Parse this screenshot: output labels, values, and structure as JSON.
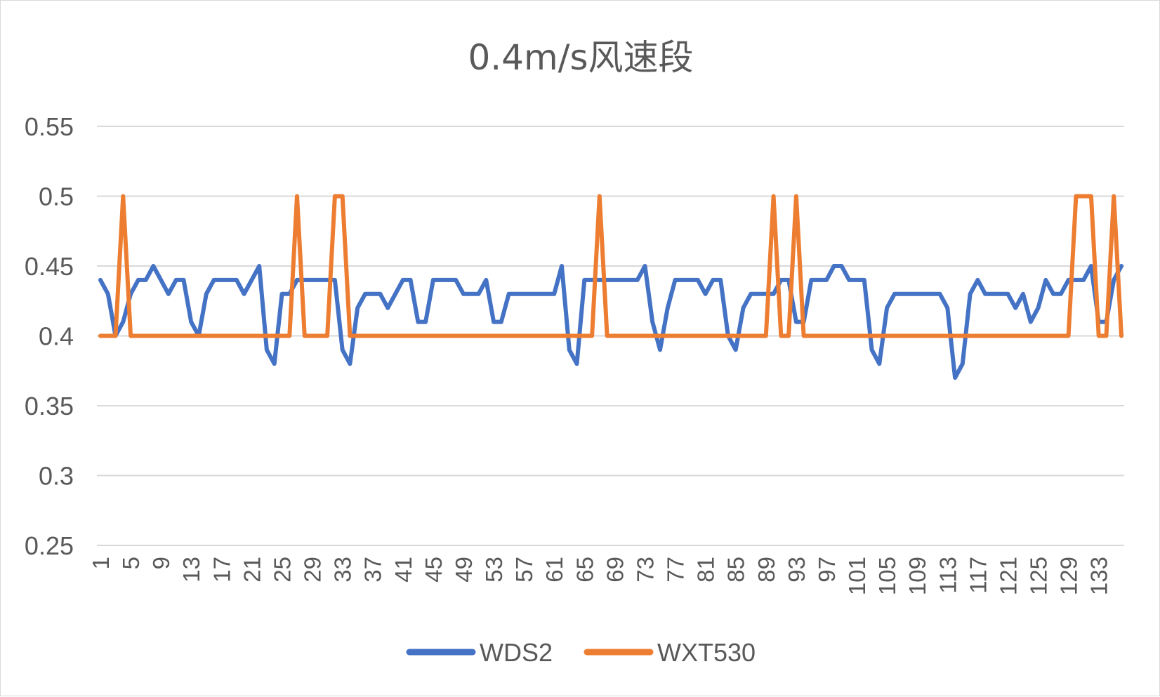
{
  "chart_data": {
    "type": "line",
    "title": "0.4m/s风速段",
    "xlabel": "",
    "ylabel": "",
    "ylim": [
      0.25,
      0.55
    ],
    "yticks": [
      "0.25",
      "0.3",
      "0.35",
      "0.4",
      "0.45",
      "0.5",
      "0.55"
    ],
    "x_count": 136,
    "xtick_labels": [
      "1",
      "5",
      "9",
      "13",
      "17",
      "21",
      "25",
      "29",
      "33",
      "37",
      "41",
      "45",
      "49",
      "53",
      "57",
      "61",
      "65",
      "69",
      "73",
      "77",
      "81",
      "85",
      "89",
      "93",
      "97",
      "101",
      "105",
      "109",
      "113",
      "117",
      "121",
      "125",
      "129",
      "133"
    ],
    "grid": "horizontal",
    "legend_position": "bottom",
    "series": [
      {
        "name": "WDS2",
        "color": "#4472C4",
        "values": [
          0.44,
          0.43,
          0.4,
          0.41,
          0.43,
          0.44,
          0.44,
          0.45,
          0.44,
          0.43,
          0.44,
          0.44,
          0.41,
          0.4,
          0.43,
          0.44,
          0.44,
          0.44,
          0.44,
          0.43,
          0.44,
          0.45,
          0.39,
          0.38,
          0.43,
          0.43,
          0.44,
          0.44,
          0.44,
          0.44,
          0.44,
          0.44,
          0.39,
          0.38,
          0.42,
          0.43,
          0.43,
          0.43,
          0.42,
          0.43,
          0.44,
          0.44,
          0.41,
          0.41,
          0.44,
          0.44,
          0.44,
          0.44,
          0.43,
          0.43,
          0.43,
          0.44,
          0.41,
          0.41,
          0.43,
          0.43,
          0.43,
          0.43,
          0.43,
          0.43,
          0.43,
          0.45,
          0.39,
          0.38,
          0.44,
          0.44,
          0.44,
          0.44,
          0.44,
          0.44,
          0.44,
          0.44,
          0.45,
          0.41,
          0.39,
          0.42,
          0.44,
          0.44,
          0.44,
          0.44,
          0.43,
          0.44,
          0.44,
          0.4,
          0.39,
          0.42,
          0.43,
          0.43,
          0.43,
          0.43,
          0.44,
          0.44,
          0.41,
          0.41,
          0.44,
          0.44,
          0.44,
          0.45,
          0.45,
          0.44,
          0.44,
          0.44,
          0.39,
          0.38,
          0.42,
          0.43,
          0.43,
          0.43,
          0.43,
          0.43,
          0.43,
          0.43,
          0.42,
          0.37,
          0.38,
          0.43,
          0.44,
          0.43,
          0.43,
          0.43,
          0.43,
          0.42,
          0.43,
          0.41,
          0.42,
          0.44,
          0.43,
          0.43,
          0.44,
          0.44,
          0.44,
          0.45,
          0.41,
          0.41,
          0.44,
          0.45
        ]
      },
      {
        "name": "WXT530",
        "color": "#ED7D31",
        "values": [
          0.4,
          0.4,
          0.4,
          0.5,
          0.4,
          0.4,
          0.4,
          0.4,
          0.4,
          0.4,
          0.4,
          0.4,
          0.4,
          0.4,
          0.4,
          0.4,
          0.4,
          0.4,
          0.4,
          0.4,
          0.4,
          0.4,
          0.4,
          0.4,
          0.4,
          0.4,
          0.5,
          0.4,
          0.4,
          0.4,
          0.4,
          0.5,
          0.5,
          0.4,
          0.4,
          0.4,
          0.4,
          0.4,
          0.4,
          0.4,
          0.4,
          0.4,
          0.4,
          0.4,
          0.4,
          0.4,
          0.4,
          0.4,
          0.4,
          0.4,
          0.4,
          0.4,
          0.4,
          0.4,
          0.4,
          0.4,
          0.4,
          0.4,
          0.4,
          0.4,
          0.4,
          0.4,
          0.4,
          0.4,
          0.4,
          0.4,
          0.5,
          0.4,
          0.4,
          0.4,
          0.4,
          0.4,
          0.4,
          0.4,
          0.4,
          0.4,
          0.4,
          0.4,
          0.4,
          0.4,
          0.4,
          0.4,
          0.4,
          0.4,
          0.4,
          0.4,
          0.4,
          0.4,
          0.4,
          0.5,
          0.4,
          0.4,
          0.5,
          0.4,
          0.4,
          0.4,
          0.4,
          0.4,
          0.4,
          0.4,
          0.4,
          0.4,
          0.4,
          0.4,
          0.4,
          0.4,
          0.4,
          0.4,
          0.4,
          0.4,
          0.4,
          0.4,
          0.4,
          0.4,
          0.4,
          0.4,
          0.4,
          0.4,
          0.4,
          0.4,
          0.4,
          0.4,
          0.4,
          0.4,
          0.4,
          0.4,
          0.4,
          0.4,
          0.4,
          0.5,
          0.5,
          0.5,
          0.4,
          0.4,
          0.5,
          0.4
        ]
      }
    ]
  }
}
